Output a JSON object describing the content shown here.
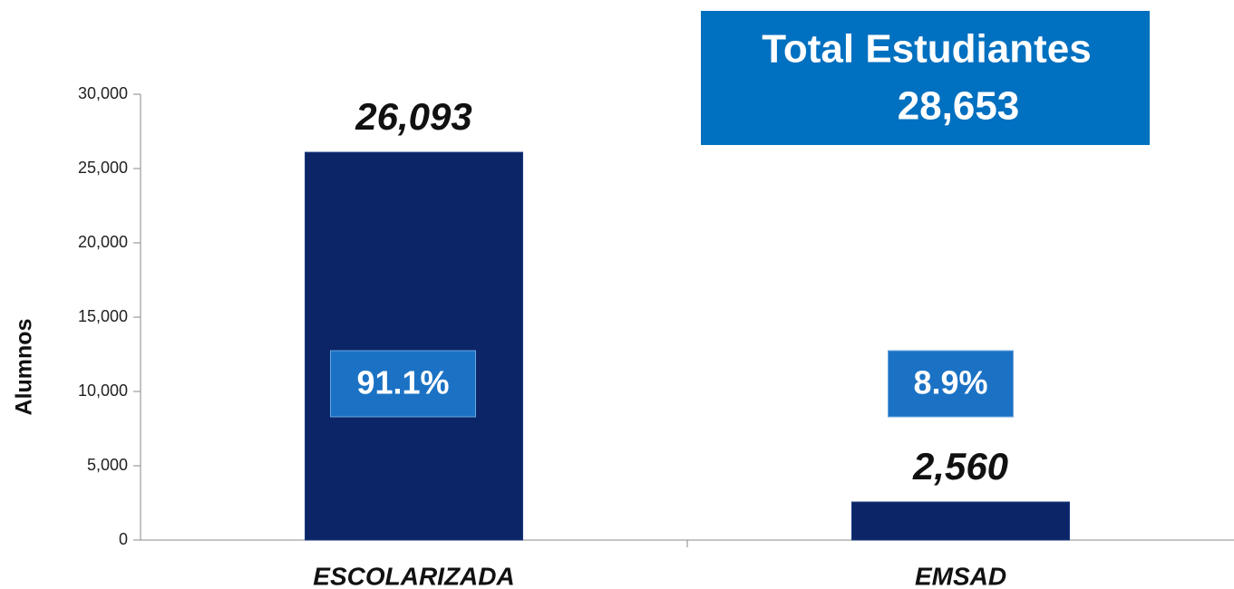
{
  "chart_data": {
    "type": "bar",
    "y_axis_label": "Alumnos",
    "categories": [
      "ESCOLARIZADA",
      "EMSAD"
    ],
    "values": [
      26093,
      2560
    ],
    "value_labels": [
      "26,093",
      "2,560"
    ],
    "percent_labels": [
      "91.1%",
      "8.9%"
    ],
    "total_box": {
      "title": "Total Estudiantes",
      "value": "28,653"
    },
    "color": "#0b2566",
    "ylim": [
      0,
      30000
    ],
    "yticks": [
      0,
      {
        "value": 5000,
        "label": "5,000"
      },
      {
        "value": 10000,
        "label": "10,000"
      },
      {
        "value": 15000,
        "label": "15,000"
      },
      {
        "value": 20000,
        "label": "20,000"
      },
      {
        "value": 25000,
        "label": "25,000"
      },
      {
        "value": 30000,
        "label": "30,000"
      }
    ],
    "grid": false
  }
}
